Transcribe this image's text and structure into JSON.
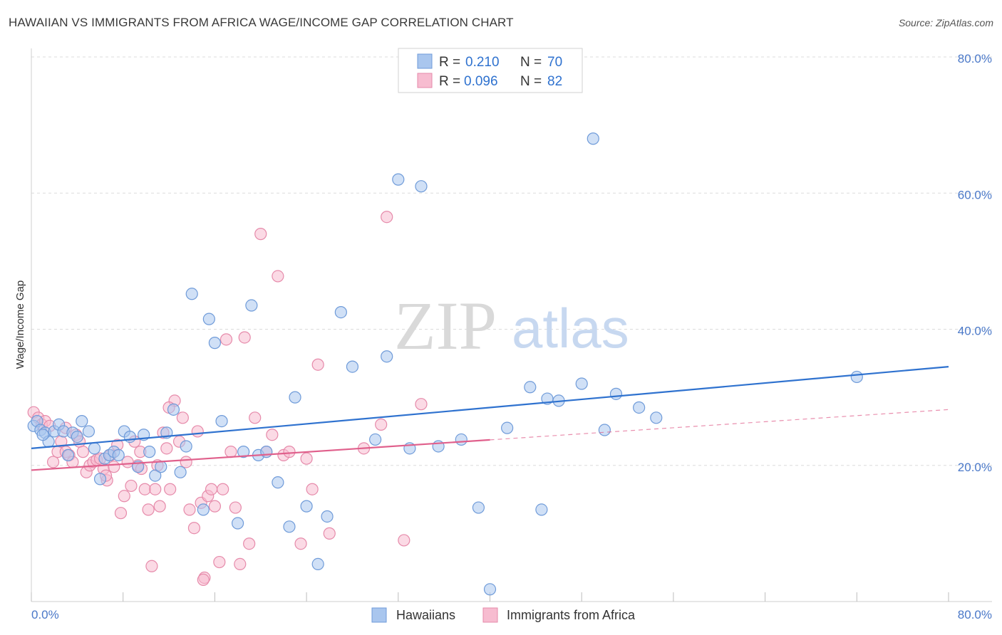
{
  "title": "HAWAIIAN VS IMMIGRANTS FROM AFRICA WAGE/INCOME GAP CORRELATION CHART",
  "source": "Source: ZipAtlas.com",
  "watermark": {
    "zip": "ZIP",
    "atlas": "atlas"
  },
  "legend": {
    "rows": [
      {
        "r_label": "R =",
        "r_value": "0.210",
        "n_label": "N =",
        "n_value": "70"
      },
      {
        "r_label": "R =",
        "r_value": "0.096",
        "n_label": "N =",
        "n_value": "82"
      }
    ]
  },
  "colors": {
    "blue_fill": "#a9c6ee",
    "blue_stroke": "#6f9bd9",
    "blue_line": "#2f72cf",
    "pink_fill": "#f7bcd0",
    "pink_stroke": "#e68aaa",
    "pink_line": "#e0608c",
    "axis_text": "#4a78c8",
    "grid": "#dcdcdc"
  },
  "chart_data": {
    "type": "scatter",
    "title": "HAWAIIAN VS IMMIGRANTS FROM AFRICA WAGE/INCOME GAP CORRELATION CHART",
    "xlabel": "",
    "ylabel": "Wage/Income Gap",
    "xlim": [
      0,
      80
    ],
    "ylim": [
      0,
      80
    ],
    "x_tick_labels": [
      "0.0%",
      "80.0%"
    ],
    "y_ticks": [
      20,
      40,
      60,
      80
    ],
    "y_tick_labels": [
      "20.0%",
      "40.0%",
      "60.0%",
      "80.0%"
    ],
    "grid": true,
    "legend_position": "top-center",
    "series": [
      {
        "name": "Hawaiians",
        "color": "#a9c6ee",
        "trend": {
          "x": [
            0,
            80
          ],
          "y": [
            22.5,
            34.5
          ],
          "dashed_from": null
        },
        "points": [
          [
            0.2,
            25.8
          ],
          [
            0.5,
            26.5
          ],
          [
            0.8,
            25.2
          ],
          [
            1.2,
            24.8
          ],
          [
            1.5,
            23.5
          ],
          [
            2.0,
            25.0
          ],
          [
            2.4,
            26.0
          ],
          [
            2.8,
            25.0
          ],
          [
            3.2,
            21.5
          ],
          [
            3.6,
            24.8
          ],
          [
            4.0,
            24.2
          ],
          [
            4.4,
            26.5
          ],
          [
            5.0,
            25.0
          ],
          [
            5.5,
            22.5
          ],
          [
            6.0,
            18.0
          ],
          [
            6.4,
            21.0
          ],
          [
            6.8,
            21.5
          ],
          [
            7.2,
            22.0
          ],
          [
            7.6,
            21.5
          ],
          [
            8.1,
            25.0
          ],
          [
            8.6,
            24.2
          ],
          [
            9.3,
            19.8
          ],
          [
            9.8,
            24.5
          ],
          [
            10.3,
            22.0
          ],
          [
            10.8,
            18.5
          ],
          [
            11.3,
            19.8
          ],
          [
            11.8,
            24.8
          ],
          [
            12.4,
            28.2
          ],
          [
            13.0,
            19.0
          ],
          [
            13.5,
            22.8
          ],
          [
            14.0,
            45.2
          ],
          [
            15.0,
            13.5
          ],
          [
            15.5,
            41.5
          ],
          [
            16.0,
            38.0
          ],
          [
            16.6,
            26.5
          ],
          [
            18.0,
            11.5
          ],
          [
            18.5,
            22.0
          ],
          [
            19.2,
            43.5
          ],
          [
            19.8,
            21.5
          ],
          [
            20.5,
            22.0
          ],
          [
            21.5,
            17.5
          ],
          [
            22.5,
            11.0
          ],
          [
            23.0,
            30.0
          ],
          [
            24.0,
            14.0
          ],
          [
            25.0,
            5.5
          ],
          [
            25.8,
            12.5
          ],
          [
            27.0,
            42.5
          ],
          [
            28.0,
            34.5
          ],
          [
            30.0,
            23.8
          ],
          [
            31.0,
            36.0
          ],
          [
            32.0,
            62.0
          ],
          [
            33.0,
            22.5
          ],
          [
            34.0,
            61.0
          ],
          [
            35.5,
            22.8
          ],
          [
            37.5,
            23.8
          ],
          [
            39.0,
            13.8
          ],
          [
            40.0,
            1.8
          ],
          [
            41.5,
            25.5
          ],
          [
            43.5,
            31.5
          ],
          [
            44.5,
            13.5
          ],
          [
            45.0,
            29.8
          ],
          [
            46.0,
            29.5
          ],
          [
            48.0,
            32.0
          ],
          [
            49.0,
            68.0
          ],
          [
            50.0,
            25.2
          ],
          [
            51.0,
            30.5
          ],
          [
            53.0,
            28.5
          ],
          [
            54.5,
            27.0
          ],
          [
            72.0,
            33.0
          ],
          [
            1.0,
            24.5
          ]
        ]
      },
      {
        "name": "Immigrants from Africa",
        "color": "#f7bcd0",
        "trend": {
          "x": [
            0,
            80
          ],
          "y": [
            19.3,
            28.2
          ],
          "dashed_from": 40
        },
        "points": [
          [
            0.2,
            27.8
          ],
          [
            0.6,
            27.0
          ],
          [
            0.9,
            26.0
          ],
          [
            1.2,
            26.5
          ],
          [
            1.6,
            25.8
          ],
          [
            1.9,
            20.5
          ],
          [
            2.3,
            22.0
          ],
          [
            2.6,
            23.5
          ],
          [
            3.0,
            22.0
          ],
          [
            3.3,
            21.5
          ],
          [
            3.6,
            20.5
          ],
          [
            3.9,
            24.5
          ],
          [
            4.2,
            23.5
          ],
          [
            4.5,
            22.0
          ],
          [
            4.8,
            19.0
          ],
          [
            5.1,
            20.0
          ],
          [
            5.4,
            20.5
          ],
          [
            5.7,
            20.8
          ],
          [
            6.0,
            21.0
          ],
          [
            6.3,
            19.5
          ],
          [
            6.6,
            17.8
          ],
          [
            6.9,
            21.5
          ],
          [
            7.2,
            19.8
          ],
          [
            7.5,
            23.0
          ],
          [
            7.8,
            13.0
          ],
          [
            8.1,
            15.5
          ],
          [
            8.4,
            20.5
          ],
          [
            8.7,
            17.0
          ],
          [
            9.0,
            23.5
          ],
          [
            9.3,
            20.0
          ],
          [
            9.6,
            19.5
          ],
          [
            9.9,
            16.5
          ],
          [
            10.2,
            13.5
          ],
          [
            10.5,
            5.2
          ],
          [
            10.8,
            16.5
          ],
          [
            11.2,
            14.0
          ],
          [
            11.5,
            24.8
          ],
          [
            11.8,
            22.5
          ],
          [
            12.1,
            16.5
          ],
          [
            12.5,
            29.5
          ],
          [
            12.9,
            23.5
          ],
          [
            13.2,
            27.0
          ],
          [
            13.5,
            20.5
          ],
          [
            13.8,
            13.5
          ],
          [
            14.2,
            10.8
          ],
          [
            14.5,
            25.0
          ],
          [
            14.8,
            14.5
          ],
          [
            15.1,
            3.5
          ],
          [
            15.4,
            15.5
          ],
          [
            15.7,
            16.5
          ],
          [
            16.0,
            14.0
          ],
          [
            16.4,
            5.8
          ],
          [
            16.7,
            16.5
          ],
          [
            17.0,
            38.5
          ],
          [
            17.4,
            22.0
          ],
          [
            17.8,
            13.8
          ],
          [
            18.2,
            5.5
          ],
          [
            18.6,
            38.8
          ],
          [
            19.0,
            8.5
          ],
          [
            19.5,
            27.0
          ],
          [
            20.0,
            54.0
          ],
          [
            20.5,
            22.0
          ],
          [
            21.0,
            24.5
          ],
          [
            21.5,
            47.8
          ],
          [
            22.0,
            21.5
          ],
          [
            22.5,
            22.0
          ],
          [
            23.5,
            8.5
          ],
          [
            24.0,
            21.0
          ],
          [
            24.5,
            16.5
          ],
          [
            25.0,
            34.8
          ],
          [
            26.0,
            10.0
          ],
          [
            29.0,
            22.5
          ],
          [
            30.5,
            26.0
          ],
          [
            31.0,
            56.5
          ],
          [
            32.5,
            9.0
          ],
          [
            34.0,
            29.0
          ],
          [
            12.0,
            28.5
          ],
          [
            15.0,
            3.2
          ],
          [
            3.0,
            25.5
          ],
          [
            6.5,
            18.5
          ],
          [
            11.0,
            20.0
          ],
          [
            9.5,
            22.0
          ]
        ]
      }
    ]
  },
  "bottom_legend": {
    "items": [
      "Hawaiians",
      "Immigrants from Africa"
    ]
  }
}
